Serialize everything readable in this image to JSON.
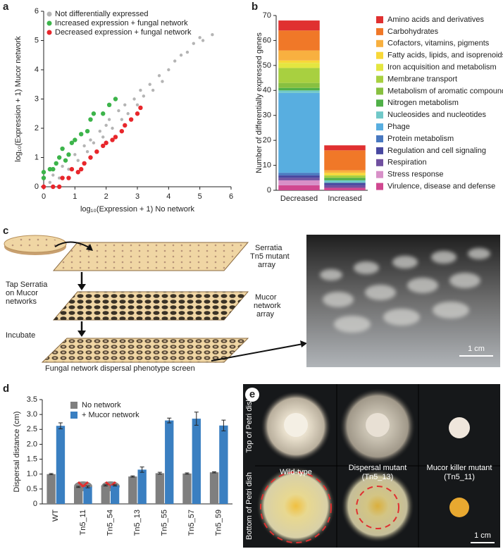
{
  "panel_labels": [
    "a",
    "b",
    "c",
    "d",
    "e"
  ],
  "chart_data": [
    {
      "type": "scatter",
      "xlabel": "log₁₀(Expression + 1) No network",
      "ylabel": "log₁₀(Expression + 1) Mucor network",
      "xlim": [
        0,
        6
      ],
      "ylim": [
        0,
        6
      ],
      "xticks": [
        0,
        1,
        2,
        3,
        4,
        5,
        6
      ],
      "yticks": [
        0,
        1,
        2,
        3,
        4,
        5,
        6
      ],
      "legend": "upper left",
      "series": [
        {
          "name": "Not differentially expressed",
          "color": "#b4b4b4",
          "x": [
            0,
            0.2,
            0.3,
            0.5,
            0.6,
            0.8,
            1,
            1.1,
            1.3,
            1.4,
            1.5,
            1.6,
            1.8,
            1.9,
            2,
            2.1,
            2.2,
            2.4,
            2.5,
            2.6,
            2.7,
            2.9,
            3,
            3.1,
            3.2,
            3.4,
            3.5,
            3.7,
            3.8,
            4,
            4.2,
            4.4,
            4.6,
            4.8,
            5,
            5.1,
            5.4
          ],
          "y": [
            0,
            0.15,
            0.4,
            0.3,
            0.7,
            0.6,
            1.1,
            0.9,
            1.4,
            1.2,
            1.6,
            1.5,
            1.9,
            1.7,
            2.1,
            2.3,
            2,
            2.6,
            2.3,
            2.8,
            2.5,
            3,
            2.8,
            3.3,
            3.1,
            3.5,
            3.3,
            3.8,
            3.6,
            4,
            4.3,
            4.5,
            4.6,
            4.9,
            5.1,
            5,
            5.2
          ]
        },
        {
          "name": "Increased expression + fungal network",
          "color": "#3cb44a",
          "x": [
            0,
            0,
            0.2,
            0.3,
            0.4,
            0.5,
            0.6,
            0.7,
            0.8,
            0.9,
            1,
            1.2,
            1.4,
            1.5,
            1.6,
            1.9,
            2.1,
            2.3
          ],
          "y": [
            0.5,
            0.3,
            0.6,
            0.6,
            0.8,
            1,
            1.3,
            0.9,
            1.1,
            1.5,
            1.6,
            1.8,
            1.9,
            2.3,
            2.5,
            2.5,
            2.8,
            3
          ]
        },
        {
          "name": "Decreased expression + fungal network",
          "color": "#e8262b",
          "x": [
            0,
            0.3,
            0.5,
            0.6,
            0.8,
            0.9,
            1.1,
            1.2,
            1.3,
            1.5,
            1.7,
            1.9,
            2,
            2.2,
            2.3,
            2.5,
            2.6,
            2.8,
            3,
            3.1
          ],
          "y": [
            0,
            0,
            0,
            0.3,
            0.3,
            0.6,
            0.5,
            0.6,
            0.8,
            1,
            1.2,
            1.4,
            1.5,
            1.6,
            1.7,
            1.9,
            2.1,
            2.3,
            2.5,
            2.7
          ]
        }
      ]
    },
    {
      "type": "bar",
      "stacked": true,
      "ylabel": "Number of differentially expressed genes",
      "categories": [
        "Decreased",
        "Increased"
      ],
      "ylim": [
        0,
        70
      ],
      "yticks": [
        0,
        10,
        20,
        30,
        40,
        50,
        60,
        70
      ],
      "legend": "right",
      "series": [
        {
          "name": "Amino acids and derivatives",
          "color": "#e03030",
          "values": [
            4,
            2
          ]
        },
        {
          "name": "Carbohydrates",
          "color": "#f07828",
          "values": [
            8,
            8
          ]
        },
        {
          "name": "Cofactors, vitamins, pigments",
          "color": "#f8b040",
          "values": [
            4,
            1
          ]
        },
        {
          "name": "Fatty acids, lipids, and isoprenoids",
          "color": "#f8d838",
          "values": [
            1,
            1
          ]
        },
        {
          "name": "Iron acquisition and metabolism",
          "color": "#e4e640",
          "values": [
            2,
            0
          ]
        },
        {
          "name": "Membrane transport",
          "color": "#a8d040",
          "values": [
            6,
            1
          ]
        },
        {
          "name": "Metabolism of aromatic compounds",
          "color": "#88c040",
          "values": [
            2,
            0
          ]
        },
        {
          "name": "Nitrogen metabolism",
          "color": "#50b048",
          "values": [
            1,
            1
          ]
        },
        {
          "name": "Nucleosides and nucleotides",
          "color": "#70c8c8",
          "values": [
            1,
            1
          ]
        },
        {
          "name": "Phage",
          "color": "#58aee0",
          "values": [
            32,
            0
          ]
        },
        {
          "name": "Protein metabolism",
          "color": "#4878c0",
          "values": [
            1,
            0
          ]
        },
        {
          "name": "Regulation and cell signaling",
          "color": "#4848a0",
          "values": [
            1,
            1
          ]
        },
        {
          "name": "Respiration",
          "color": "#7050a0",
          "values": [
            1,
            1
          ]
        },
        {
          "name": "Stress response",
          "color": "#d890c8",
          "values": [
            2,
            0
          ]
        },
        {
          "name": "Virulence, disease and defense",
          "color": "#d04890",
          "values": [
            2,
            1
          ]
        }
      ]
    },
    {
      "type": "bar",
      "ylabel": "Dispersal distance (cm)",
      "categories": [
        "WT",
        "Tn5_11",
        "Tn5_54",
        "Tn5_13",
        "Tn5_55",
        "Tn5_57",
        "Tn5_59"
      ],
      "ylim": [
        0,
        3.5
      ],
      "yticks": [
        0,
        0.5,
        {
          "value": 1,
          "label": "1.0"
        },
        1.5,
        {
          "value": 2,
          "label": "2.0"
        },
        2.5,
        {
          "value": 3,
          "label": "3.0"
        },
        3.5
      ],
      "legend": "upper left",
      "series": [
        {
          "name": "No network",
          "color": "#7f7f7f",
          "values": [
            1,
            0.57,
            0.62,
            0.92,
            1.03,
            1.02,
            1.06
          ],
          "errors": [
            0.02,
            0.02,
            0.02,
            0.02,
            0.03,
            0.02,
            0.02
          ]
        },
        {
          "name": "+ Mucor network",
          "color": "#3a7fc1",
          "values": [
            2.62,
            0.57,
            0.62,
            1.15,
            2.8,
            2.86,
            2.63
          ],
          "errors": [
            0.1,
            0.03,
            0.02,
            0.09,
            0.08,
            0.22,
            0.18
          ]
        }
      ]
    }
  ],
  "diagram": {
    "plate_labels": [
      [
        "Serratia",
        "Tn5 mutant",
        "array"
      ],
      [
        "Mucor",
        "network",
        "array"
      ]
    ],
    "steps": [
      [
        "Tap Serratia",
        "on Mucor",
        "networks"
      ],
      [
        "Incubate"
      ]
    ],
    "caption": "Fungal network dispersal phenotype screen",
    "scale_bar": "1 cm"
  },
  "photos": {
    "row_labels": [
      "Top of Petri dish",
      "Bottom of Petri dish"
    ],
    "column_labels": [
      [
        "Wild-type"
      ],
      [
        "Dispersal mutant",
        "(Tn5_13)"
      ],
      [
        "Mucor killer mutant",
        "(Tn5_11)"
      ]
    ],
    "scale_bar": "1 cm"
  }
}
